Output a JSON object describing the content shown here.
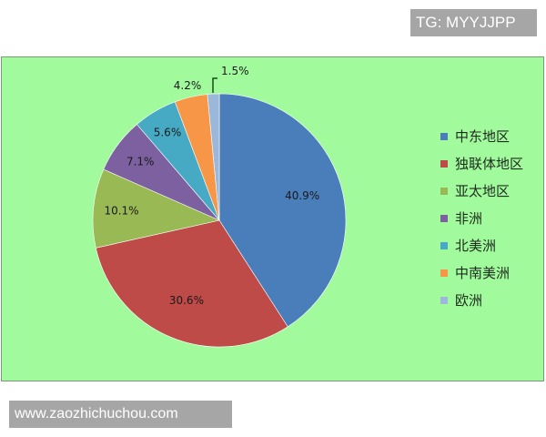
{
  "watermark_tg": "TG: MYYJJPP",
  "watermark_site": "www.zaozhichuchou.com",
  "chart_data": {
    "type": "pie",
    "categories": [
      "中东地区",
      "独联体地区",
      "亚太地区",
      "非洲",
      "北美洲",
      "中南美洲",
      "欧洲"
    ],
    "values": [
      40.9,
      30.6,
      10.1,
      7.1,
      5.6,
      4.2,
      1.5
    ],
    "labels": [
      "40.9%",
      "30.6%",
      "10.1%",
      "7.1%",
      "5.6%",
      "4.2%",
      "1.5%"
    ],
    "colors": [
      "#4a7ebb",
      "#be4b48",
      "#98b954",
      "#7d60a0",
      "#46aac5",
      "#f79646",
      "#9bb7d9"
    ],
    "background": "#a1fb9d",
    "start": "top, clockwise",
    "legend_position": "right"
  }
}
